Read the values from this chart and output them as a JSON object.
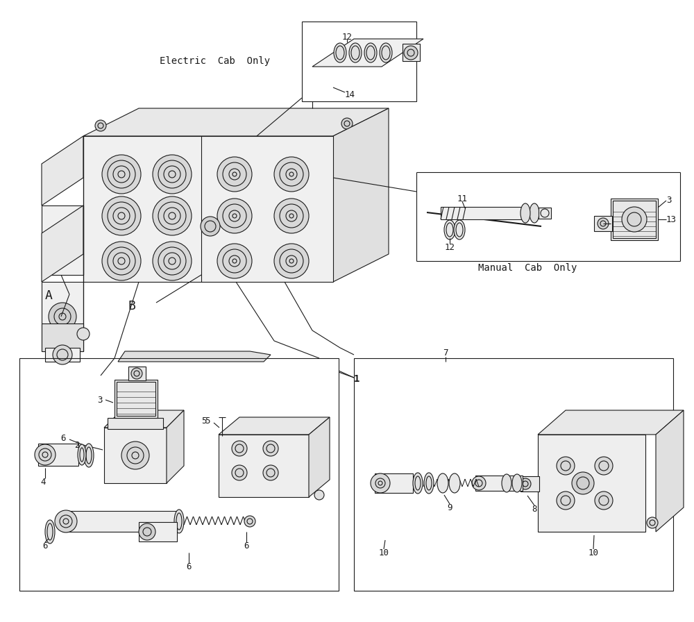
{
  "bg": "#ffffff",
  "lc": "#1a1a1a",
  "lw": 0.8,
  "fw": 10.0,
  "fh": 8.96,
  "texts": {
    "electric_cab": "Electric  Cab  Only",
    "manual_cab": "Manual  Cab  Only",
    "A": "A",
    "B": "B",
    "1": "1",
    "2": "2",
    "3": "3",
    "4": "4",
    "5": "5",
    "6": "6",
    "7": "7",
    "8": "8",
    "9": "9",
    "10": "10",
    "11": "11",
    "12": "12",
    "13": "13",
    "14": "14"
  }
}
